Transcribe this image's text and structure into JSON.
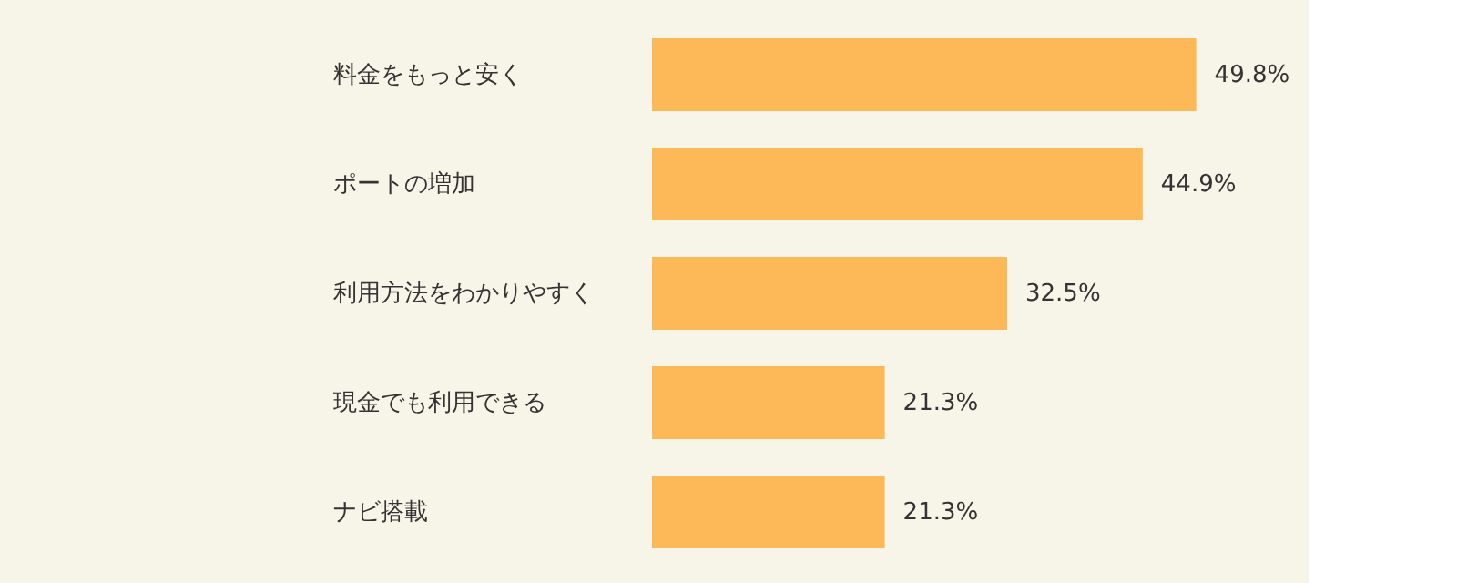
{
  "chart_data": {
    "type": "bar",
    "orientation": "horizontal",
    "categories": [
      "料金をもっと安く",
      "ポートの増加",
      "利用方法をわかりやすく",
      "現金でも利用できる",
      "ナビ搭載"
    ],
    "values": [
      49.8,
      44.9,
      32.5,
      21.3,
      21.3
    ],
    "value_labels": [
      "49.8%",
      "44.9%",
      "32.5%",
      "21.3%",
      "21.3%"
    ],
    "color": "#fdb958",
    "grid": false
  }
}
